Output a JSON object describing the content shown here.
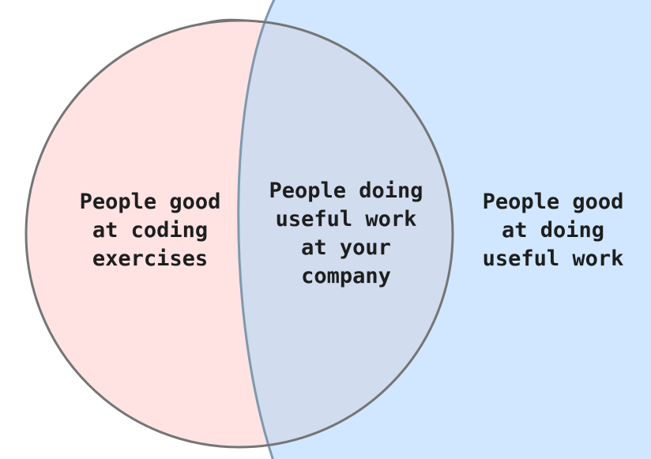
{
  "regions": {
    "left": {
      "lines": [
        "People good",
        "at coding",
        "exercises"
      ],
      "fill_color": "#ffe3e3",
      "stroke_color": "#757575"
    },
    "middle": {
      "lines": [
        "People doing",
        "useful work",
        "at your",
        "company"
      ],
      "fill_color": "#d1dcee"
    },
    "right": {
      "lines": [
        "People good",
        "at doing",
        "useful work"
      ],
      "fill_color": "#d0e7ff",
      "stroke_color": "#7f99ad"
    }
  }
}
